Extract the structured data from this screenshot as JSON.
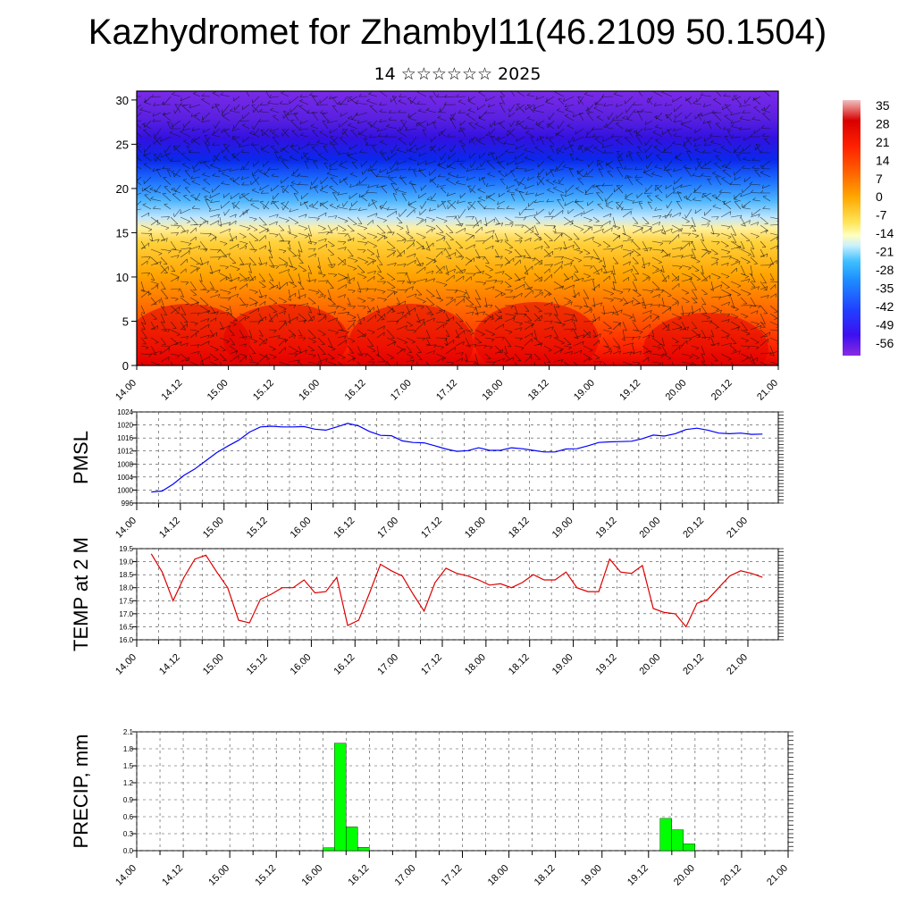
{
  "title": "Kazhydromet for Zhambyl11(46.2109 50.1504)",
  "subtitle": "14 ☆☆☆☆☆☆ 2025",
  "chart_data": [
    {
      "type": "heatmap",
      "name": "vertical-section",
      "y_ticks": [
        0,
        5,
        10,
        15,
        20,
        25,
        30
      ],
      "ylim": [
        0,
        31
      ],
      "x_ticks": [
        "14.00",
        "14.12",
        "15.00",
        "15.12",
        "16.00",
        "16.12",
        "17.00",
        "17.12",
        "18.00",
        "18.12",
        "19.00",
        "19.12",
        "20.00",
        "20.12",
        "21.00"
      ],
      "colorbar_labels": [
        "35",
        "28",
        "21",
        "14",
        "7",
        "0",
        "-7",
        "-14",
        "-21",
        "-28",
        "-35",
        "-42",
        "-49",
        "-56"
      ],
      "colorbar_range": [
        -63,
        35
      ],
      "vector_field": true
    },
    {
      "type": "line",
      "name": "pmsl",
      "ylabel": "PMSL",
      "color": "#0000ff",
      "ylim": [
        996,
        1024
      ],
      "y_ticks": [
        996,
        1000,
        1004,
        1008,
        1012,
        1016,
        1020,
        1024
      ],
      "x_ticks": [
        "14.00",
        "14.12",
        "15.00",
        "15.12",
        "16.00",
        "16.12",
        "17.00",
        "17.12",
        "18.00",
        "18.12",
        "19.00",
        "19.12",
        "20.00",
        "20.12",
        "21.00"
      ],
      "x": [
        0,
        3,
        6,
        9,
        12,
        15,
        18,
        21,
        24,
        27,
        30,
        33,
        36,
        39,
        42,
        45,
        48,
        51,
        54,
        57,
        60,
        63,
        66,
        69,
        72,
        75,
        78,
        81,
        84,
        87,
        90,
        93,
        96,
        99,
        102,
        105,
        108,
        111,
        114,
        117,
        120,
        123,
        126,
        129,
        132,
        135,
        138,
        141,
        144,
        147,
        150,
        153,
        156,
        159,
        162,
        165,
        168
      ],
      "values": [
        999.4,
        999.7,
        1001.8,
        1004.5,
        1006.5,
        1009,
        1011.5,
        1013.5,
        1015.3,
        1017.8,
        1019.4,
        1019.6,
        1019.4,
        1019.4,
        1019.5,
        1018.7,
        1018.4,
        1019.4,
        1020.5,
        1019.7,
        1018,
        1016.8,
        1016.7,
        1015.1,
        1014.6,
        1014.5,
        1013.6,
        1012.6,
        1011.9,
        1012.1,
        1013,
        1012.2,
        1012.2,
        1013,
        1012.7,
        1012.2,
        1011.7,
        1011.7,
        1012.6,
        1012.7,
        1013.6,
        1014.6,
        1014.8,
        1014.9,
        1015,
        1015.8,
        1016.9,
        1016.6,
        1017.3,
        1018.6,
        1019,
        1018.4,
        1017.5,
        1017.3,
        1017.5,
        1017.1,
        1017.2
      ]
    },
    {
      "type": "line",
      "name": "temp-2m",
      "ylabel": "TEMP at 2 M",
      "color": "#dd0000",
      "ylim": [
        16.0,
        19.5
      ],
      "y_ticks": [
        "16.0",
        "16.5",
        "17.0",
        "17.5",
        "18.0",
        "18.5",
        "19.0",
        "19.5"
      ],
      "x_ticks": [
        "14.00",
        "14.12",
        "15.00",
        "15.12",
        "16.00",
        "16.12",
        "17.00",
        "17.12",
        "18.00",
        "18.12",
        "19.00",
        "19.12",
        "20.00",
        "20.12",
        "21.00"
      ],
      "x": [
        0,
        3,
        6,
        9,
        12,
        15,
        18,
        21,
        24,
        27,
        30,
        33,
        36,
        39,
        42,
        45,
        48,
        51,
        54,
        57,
        60,
        63,
        66,
        69,
        72,
        75,
        78,
        81,
        84,
        87,
        90,
        93,
        96,
        99,
        102,
        105,
        108,
        111,
        114,
        117,
        120,
        123,
        126,
        129,
        132,
        135,
        138,
        141,
        144,
        147,
        150,
        153,
        156,
        159,
        162,
        165,
        168
      ],
      "values": [
        19.3,
        18.6,
        17.5,
        18.4,
        19.1,
        19.25,
        18.6,
        18.0,
        16.75,
        16.65,
        17.55,
        17.75,
        18.0,
        18.0,
        18.3,
        17.8,
        17.85,
        18.4,
        16.55,
        16.75,
        17.8,
        18.9,
        18.65,
        18.45,
        17.75,
        17.1,
        18.2,
        18.75,
        18.55,
        18.45,
        18.3,
        18.1,
        18.15,
        18.0,
        18.2,
        18.5,
        18.3,
        18.3,
        18.6,
        18.0,
        17.85,
        17.85,
        19.1,
        18.6,
        18.55,
        18.85,
        17.2,
        17.05,
        17.0,
        16.5,
        17.4,
        17.55,
        18.0,
        18.45,
        18.65,
        18.55,
        18.4
      ]
    },
    {
      "type": "bar",
      "name": "precip",
      "ylabel": "PRECIP, mm",
      "color": "#00ff00",
      "ylim": [
        0,
        2.1
      ],
      "y_ticks": [
        "0.0",
        "0.3",
        "0.6",
        "0.9",
        "1.2",
        "1.5",
        "1.8",
        "2.1"
      ],
      "x_ticks": [
        "14.00",
        "14.12",
        "15.00",
        "15.12",
        "16.00",
        "16.12",
        "17.00",
        "17.12",
        "18.00",
        "18.12",
        "19.00",
        "19.12",
        "20.00",
        "20.12",
        "21.00"
      ],
      "x": [
        48,
        51,
        54,
        57,
        135,
        138,
        141
      ],
      "values": [
        0.05,
        1.9,
        0.42,
        0.06,
        0.57,
        0.37,
        0.12
      ]
    }
  ]
}
